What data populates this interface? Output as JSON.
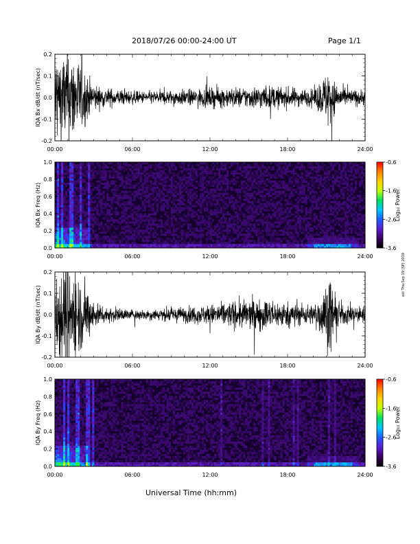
{
  "header": {
    "title": "2018/07/26  00:00-24:00 UT",
    "page": "Page 1/1"
  },
  "side_note": "ext Thu Sep 19 (SP) 2019",
  "x_label": "Universal Time (hh:mm)",
  "colors": {
    "background": "#ffffff",
    "trace": "#000000",
    "spectrogram_bg": "#14002a",
    "colorbar": [
      "#000000",
      "#3a0060",
      "#5a1fd0",
      "#1f5dff",
      "#00c8ff",
      "#00e060",
      "#c8ff00",
      "#ffd000",
      "#ff8000",
      "#ff0000"
    ]
  },
  "chart_data": [
    {
      "type": "line",
      "panel": "bx-dbdt",
      "ylabel": "IQA Bx dB/dt (nT/sec)",
      "ylim": [
        -0.2,
        0.2
      ],
      "y_ticks": [
        "0.2",
        "0.1",
        "0.0",
        "-0.1",
        "-0.2"
      ],
      "y_tick_values": [
        0.2,
        0.1,
        0.0,
        -0.1,
        -0.2
      ],
      "x_ticks": [
        "00:00",
        "06:00",
        "12:00",
        "18:00",
        "24:00"
      ],
      "x_tick_values": [
        0,
        6,
        12,
        18,
        24
      ],
      "xlim": [
        0,
        24
      ],
      "envelope": [
        [
          0,
          0.25
        ],
        [
          0.5,
          0.22
        ],
        [
          1.0,
          0.25
        ],
        [
          1.6,
          0.21
        ],
        [
          2.2,
          0.15
        ],
        [
          2.8,
          0.08
        ],
        [
          3.5,
          0.05
        ],
        [
          5.0,
          0.04
        ],
        [
          6.5,
          0.03
        ],
        [
          8.5,
          0.035
        ],
        [
          10.5,
          0.04
        ],
        [
          12.5,
          0.05
        ],
        [
          14.5,
          0.05
        ],
        [
          16.0,
          0.06
        ],
        [
          18.0,
          0.05
        ],
        [
          20.0,
          0.04
        ],
        [
          21.0,
          0.12
        ],
        [
          21.3,
          0.18
        ],
        [
          21.6,
          0.08
        ],
        [
          22.5,
          0.04
        ],
        [
          24,
          0.04
        ]
      ]
    },
    {
      "type": "heatmap",
      "panel": "bx-freq",
      "ylabel": "IQA Bx Freq (Hz)",
      "ylim": [
        0.0,
        1.0
      ],
      "y_ticks": [
        "1.0",
        "0.8",
        "0.6",
        "0.4",
        "0.2",
        "0.0"
      ],
      "y_tick_values": [
        1.0,
        0.8,
        0.6,
        0.4,
        0.2,
        0.0
      ],
      "x_ticks": [
        "00:00",
        "06:00",
        "12:00",
        "18:00",
        "24:00"
      ],
      "x_tick_values": [
        0,
        6,
        12,
        18,
        24
      ],
      "xlim": [
        0,
        24
      ],
      "colorbar_label": "Log₁₀ Power",
      "colorbar_ticks": [
        "-0.6",
        "-1.6",
        "-2.6",
        "-3.6"
      ],
      "colorbar_range": [
        -3.6,
        -0.6
      ]
    },
    {
      "type": "line",
      "panel": "by-dbdt",
      "ylabel": "IQA By dB/dt (nT/sec)",
      "ylim": [
        -0.2,
        0.2
      ],
      "y_ticks": [
        "0.2",
        "0.1",
        "0.0",
        "-0.1",
        "-0.2"
      ],
      "y_tick_values": [
        0.2,
        0.1,
        0.0,
        -0.1,
        -0.2
      ],
      "x_ticks": [
        "00:00",
        "06:00",
        "12:00",
        "18:00",
        "24:00"
      ],
      "x_tick_values": [
        0,
        6,
        12,
        18,
        24
      ],
      "xlim": [
        0,
        24
      ],
      "envelope": [
        [
          0,
          0.25
        ],
        [
          0.6,
          0.25
        ],
        [
          1.2,
          0.25
        ],
        [
          1.8,
          0.2
        ],
        [
          2.4,
          0.14
        ],
        [
          3.0,
          0.07
        ],
        [
          4.0,
          0.04
        ],
        [
          6.0,
          0.025
        ],
        [
          8.0,
          0.03
        ],
        [
          10.0,
          0.04
        ],
        [
          12.0,
          0.05
        ],
        [
          14.0,
          0.07
        ],
        [
          16.0,
          0.08
        ],
        [
          18.0,
          0.06
        ],
        [
          20.0,
          0.05
        ],
        [
          21.0,
          0.15
        ],
        [
          21.3,
          0.2
        ],
        [
          21.7,
          0.08
        ],
        [
          22.5,
          0.05
        ],
        [
          24,
          0.04
        ]
      ]
    },
    {
      "type": "heatmap",
      "panel": "by-freq",
      "ylabel": "IQA By Freq (Hz)",
      "ylim": [
        0.0,
        1.0
      ],
      "y_ticks": [
        "1.0",
        "0.8",
        "0.6",
        "0.4",
        "0.2",
        "0.0"
      ],
      "y_tick_values": [
        1.0,
        0.8,
        0.6,
        0.4,
        0.2,
        0.0
      ],
      "x_ticks": [
        "00:00",
        "06:00",
        "12:00",
        "18:00",
        "24:00"
      ],
      "x_tick_values": [
        0,
        6,
        12,
        18,
        24
      ],
      "xlim": [
        0,
        24
      ],
      "colorbar_label": "Log₁₀ Power",
      "colorbar_ticks": [
        "-0.6",
        "-1.6",
        "-2.6",
        "-3.6"
      ],
      "colorbar_range": [
        -3.6,
        -0.6
      ]
    }
  ]
}
